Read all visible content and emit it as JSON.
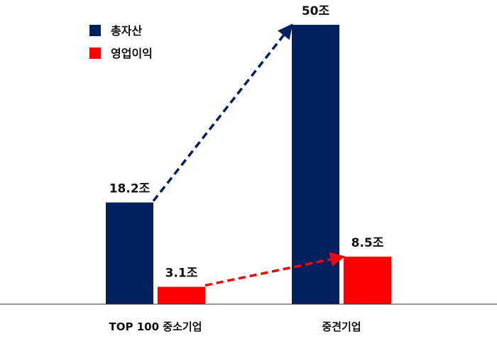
{
  "chart_data": {
    "type": "bar",
    "categories": [
      "TOP 100 중소기업",
      "중견기업"
    ],
    "series": [
      {
        "name": "총자산",
        "color": "#002060",
        "values": [
          18.2,
          50
        ],
        "labels": [
          "18.2조",
          "50조"
        ]
      },
      {
        "name": "영업이익",
        "color": "#ff0000",
        "values": [
          3.1,
          8.5
        ],
        "labels": [
          "3.1조",
          "8.5조"
        ]
      }
    ],
    "arrows": [
      {
        "series": "총자산",
        "from": "TOP 100 중소기업",
        "to": "중견기업",
        "color": "#002060",
        "style": "dashed"
      },
      {
        "series": "영업이익",
        "from": "TOP 100 중소기업",
        "to": "중견기업",
        "color": "#ff0000",
        "style": "dashed"
      }
    ],
    "legend_position": "top-left",
    "grid": false
  }
}
